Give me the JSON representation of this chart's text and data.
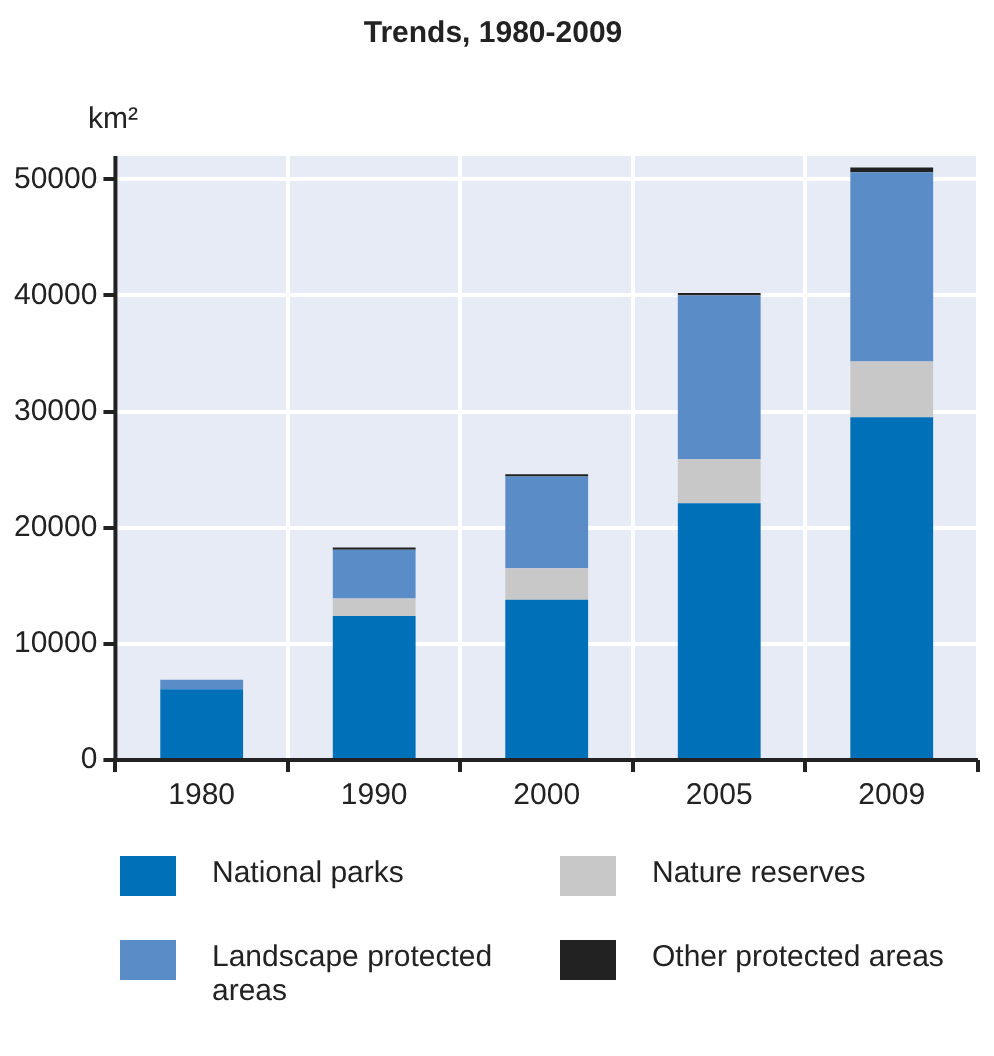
{
  "chart_data": {
    "type": "bar",
    "title": "Trends, 1980-2009",
    "ylabel": "km²",
    "categories": [
      "1980",
      "1990",
      "2000",
      "2005",
      "2009"
    ],
    "stacked": true,
    "series": [
      {
        "name": "National parks",
        "color": "#0070b8",
        "values": [
          6100,
          12400,
          13800,
          22100,
          29500
        ]
      },
      {
        "name": "Nature reserves",
        "color": "#c8c8c8",
        "values": [
          null,
          1500,
          2700,
          3800,
          4800
        ]
      },
      {
        "name": "Landscape protected areas",
        "color": "#5a8dc8",
        "values": [
          800,
          4200,
          7900,
          14100,
          16300
        ]
      },
      {
        "name": "Other protected areas",
        "color": "#222222",
        "values": [
          0,
          200,
          200,
          200,
          400
        ]
      }
    ],
    "ylim": [
      0,
      52000
    ],
    "yticks": [
      0,
      10000,
      20000,
      30000,
      40000,
      50000
    ],
    "grid": true,
    "legend": "bottom"
  }
}
